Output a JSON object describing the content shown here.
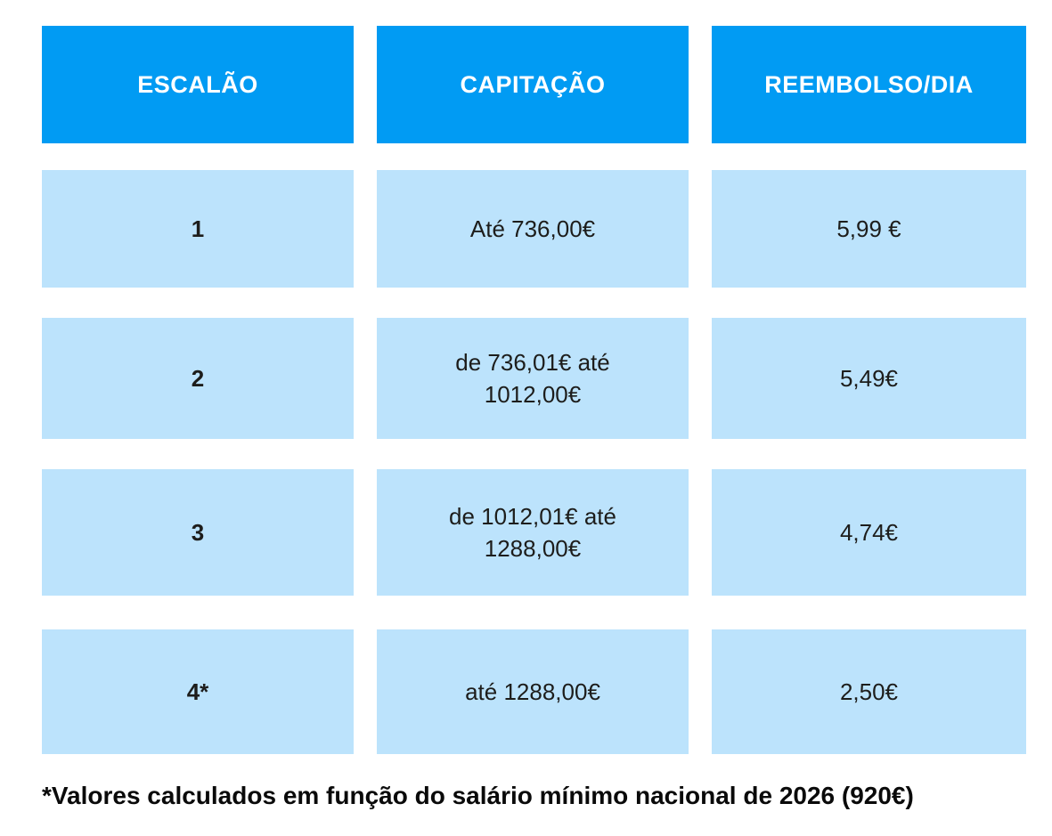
{
  "colors": {
    "header_bg": "#019BF3",
    "cell_bg": "#BCE3FC",
    "header_text": "#FFFFFF",
    "cell_text": "#1D1D1B"
  },
  "chart_data": {
    "type": "table",
    "title": "",
    "columns": [
      "ESCALÃO",
      "CAPITAÇÃO",
      "REEMBOLSO/DIA"
    ],
    "rows": [
      {
        "escalao": "1",
        "capitacao": "Até 736,00€",
        "reembolso_dia": "5,99 €"
      },
      {
        "escalao": "2",
        "capitacao": "de 736,01€ até\n1012,00€",
        "reembolso_dia": "5,49€"
      },
      {
        "escalao": "3",
        "capitacao": "de 1012,01€ até\n1288,00€",
        "reembolso_dia": "4,74€"
      },
      {
        "escalao": "4*",
        "capitacao": "até 1288,00€",
        "reembolso_dia": "2,50€"
      }
    ],
    "footnote": "*Valores calculados em função do salário mínimo nacional de 2026 (920€)"
  }
}
